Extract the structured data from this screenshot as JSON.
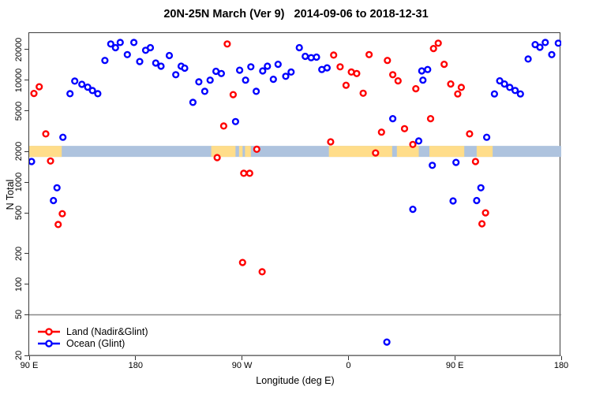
{
  "title": "20N-25N March (Ver 9)   2014-09-06 to 2018-12-31",
  "axes": {
    "x": {
      "label": "Longitude (deg E)",
      "ticks": [
        {
          "deg": 90,
          "label": "90 E"
        },
        {
          "deg": 180,
          "label": "180"
        },
        {
          "deg": 270,
          "label": "90 W"
        },
        {
          "deg": 360,
          "label": "0"
        },
        {
          "deg": 450,
          "label": "90 E"
        },
        {
          "deg": 540,
          "label": "180"
        }
      ],
      "range_deg": [
        90,
        540
      ],
      "note": "axis wraps eastward: 90E -> 180 -> 90W -> 0 -> 90E -> 180"
    },
    "y": {
      "label": "N Total",
      "scale": "log10",
      "ticks": [
        20,
        50,
        100,
        200,
        500,
        1000,
        2000,
        5000,
        10000,
        20000
      ],
      "range": [
        20,
        29000
      ]
    }
  },
  "legend": {
    "items": [
      {
        "label": "Land (Nadir&Glint)",
        "color": "#ff0000"
      },
      {
        "label": "Ocean (Glint)",
        "color": "#0000ff"
      }
    ]
  },
  "colors": {
    "land_series": "#ff0000",
    "ocean_series": "#0000ff",
    "marker_fill": "#ffffff",
    "reference_line": "#888888",
    "strip_land": "#ffdd8a",
    "strip_ocean": "#aec3de",
    "box": "#3c3c3c"
  },
  "chart_data": {
    "type": "scatter",
    "title": "20N-25N March (Ver 9)   2014-09-06 to 2018-12-31",
    "xlabel": "Longitude (deg E)",
    "ylabel": "N Total",
    "y_scale": "log10",
    "ylim": [
      20,
      29000
    ],
    "xlim_deg": [
      90,
      540
    ],
    "grid": false,
    "legend_position": "bottom-left",
    "reference_lines_y": [
      50,
      20
    ],
    "surface_strip": {
      "description": "land/ocean surface-type band drawn at N = 2000",
      "y_value": 2000,
      "land_segments_deg": [
        [
          90,
          117.5
        ],
        [
          244,
          264.5
        ],
        [
          267.5,
          270.5
        ],
        [
          272.5,
          277.5
        ],
        [
          343.5,
          397
        ],
        [
          401,
          419.5
        ],
        [
          428.5,
          458
        ],
        [
          468.5,
          482
        ]
      ],
      "ocean_base_deg": [
        90,
        540
      ]
    },
    "series": [
      {
        "name": "Land (Nadir&Glint)",
        "color": "#ff0000",
        "points": [
          [
            94,
            7400
          ],
          [
            98.5,
            8600
          ],
          [
            104,
            2970
          ],
          [
            108,
            1610
          ],
          [
            114.5,
            384
          ],
          [
            118,
            490
          ],
          [
            249,
            1740
          ],
          [
            254.5,
            3550
          ],
          [
            257.5,
            22600
          ],
          [
            262.5,
            7200
          ],
          [
            270.5,
            163
          ],
          [
            271.5,
            1220
          ],
          [
            276.5,
            1220
          ],
          [
            282.5,
            2100
          ],
          [
            287,
            132
          ],
          [
            345,
            2480
          ],
          [
            347.5,
            17600
          ],
          [
            353,
            13500
          ],
          [
            358,
            8900
          ],
          [
            362.5,
            12000
          ],
          [
            367,
            11600
          ],
          [
            372.5,
            7440
          ],
          [
            377.5,
            17800
          ],
          [
            383,
            1930
          ],
          [
            388,
            3090
          ],
          [
            393,
            15600
          ],
          [
            397.5,
            11300
          ],
          [
            402,
            9840
          ],
          [
            407.5,
            3340
          ],
          [
            414.5,
            2340
          ],
          [
            417,
            8230
          ],
          [
            429.5,
            4190
          ],
          [
            432,
            20400
          ],
          [
            436,
            23000
          ],
          [
            441,
            14300
          ],
          [
            446.5,
            9160
          ],
          [
            452.5,
            7320
          ],
          [
            455.5,
            8480
          ],
          [
            462.5,
            2970
          ],
          [
            467.5,
            1590
          ],
          [
            473,
            390
          ],
          [
            476,
            500
          ]
        ]
      },
      {
        "name": "Ocean (Glint)",
        "color": "#0000ff",
        "points": [
          [
            92,
            1590
          ],
          [
            110.5,
            660
          ],
          [
            113.5,
            880
          ],
          [
            118.5,
            2750
          ],
          [
            124.5,
            7360
          ],
          [
            128.5,
            9780
          ],
          [
            134.5,
            9100
          ],
          [
            139.5,
            8530
          ],
          [
            143.5,
            7900
          ],
          [
            148,
            7360
          ],
          [
            154,
            15600
          ],
          [
            159,
            22600
          ],
          [
            163,
            20800
          ],
          [
            167,
            23400
          ],
          [
            173,
            17800
          ],
          [
            178.5,
            23400
          ],
          [
            183.5,
            15200
          ],
          [
            188.5,
            19600
          ],
          [
            192.5,
            20800
          ],
          [
            197,
            14700
          ],
          [
            201.5,
            13700
          ],
          [
            208.5,
            17400
          ],
          [
            214,
            11300
          ],
          [
            218.5,
            13700
          ],
          [
            221.5,
            13100
          ],
          [
            228.5,
            6050
          ],
          [
            233.5,
            9610
          ],
          [
            238.5,
            7760
          ],
          [
            243,
            10000
          ],
          [
            248,
            12200
          ],
          [
            252.5,
            11600
          ],
          [
            264.5,
            3920
          ],
          [
            268,
            12500
          ],
          [
            273,
            10000
          ],
          [
            277.5,
            13500
          ],
          [
            282,
            7760
          ],
          [
            287.5,
            12300
          ],
          [
            291.5,
            13700
          ],
          [
            296.5,
            10200
          ],
          [
            300.5,
            14300
          ],
          [
            307,
            10900
          ],
          [
            311.5,
            12000
          ],
          [
            318.5,
            20800
          ],
          [
            323.5,
            17100
          ],
          [
            328.5,
            16600
          ],
          [
            333,
            16800
          ],
          [
            337.5,
            12700
          ],
          [
            342,
            13200
          ],
          [
            392.5,
            27
          ],
          [
            397.5,
            4190
          ],
          [
            414.5,
            541
          ],
          [
            419.5,
            2530
          ],
          [
            422,
            12300
          ],
          [
            423,
            10000
          ],
          [
            427,
            12700
          ],
          [
            431,
            1460
          ],
          [
            448.5,
            654
          ],
          [
            451,
            1560
          ],
          [
            468.5,
            660
          ],
          [
            472,
            880
          ],
          [
            477,
            2750
          ],
          [
            483.5,
            7320
          ],
          [
            488,
            9840
          ],
          [
            492,
            9160
          ],
          [
            496.5,
            8490
          ],
          [
            501,
            7910
          ],
          [
            505.5,
            7320
          ],
          [
            512,
            16100
          ],
          [
            518,
            22300
          ],
          [
            522,
            21000
          ],
          [
            526.5,
            23400
          ],
          [
            532,
            17800
          ],
          [
            537.5,
            23000
          ]
        ]
      }
    ]
  }
}
